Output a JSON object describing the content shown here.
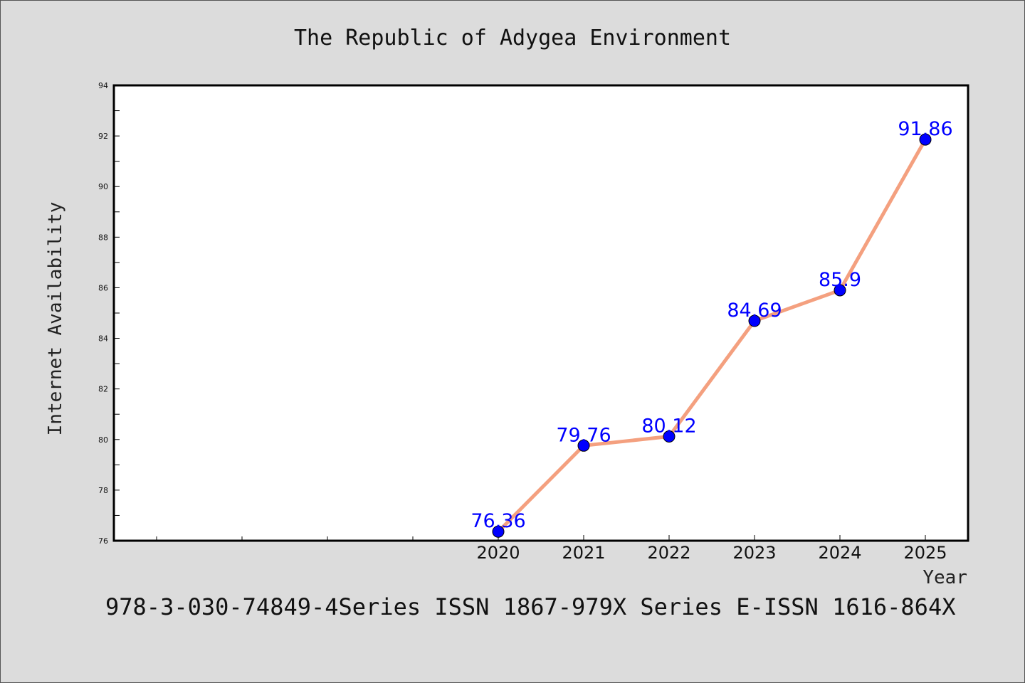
{
  "chart_data": {
    "type": "line",
    "title": "The Republic of Adygea Environment",
    "xlabel": "Year",
    "ylabel": "Internet Availability",
    "x": [
      "2020",
      "2021",
      "2022",
      "2023",
      "2024",
      "2025"
    ],
    "series": [
      {
        "values": [
          76.36,
          79.76,
          80.12,
          84.69,
          85.9,
          91.86
        ],
        "data_labels": [
          "76.36",
          "79.76",
          "80.12",
          "84.69",
          "85.9",
          "91.86"
        ]
      }
    ],
    "ylim": [
      76,
      94
    ],
    "yticks": [
      "76",
      "78",
      "80",
      "82",
      "84",
      "86",
      "88",
      "90",
      "92",
      "94"
    ],
    "grid": false,
    "line_color": "#f4a07f",
    "marker_color": "#0000ff",
    "background_color": "#ffffff"
  },
  "footer": {
    "text": "978-3-030-74849-4Series ISSN 1867-979X Series E-ISSN 1616-864X"
  }
}
